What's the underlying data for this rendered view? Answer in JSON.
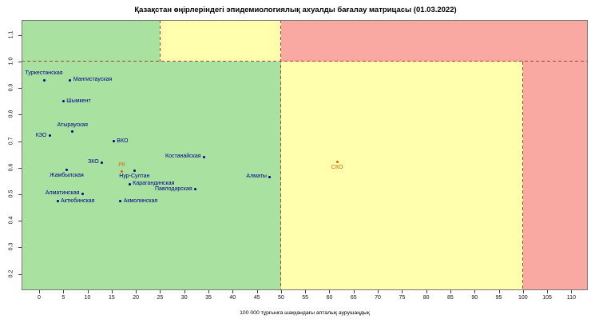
{
  "title": "Қазақстан өңірлеріндегі эпидемиологиялық ахуалды бағалау матрицасы (01.03.2022)",
  "chart_data": {
    "type": "scatter",
    "title": "Қазақстан өңірлеріндегі эпидемиологиялық ахуалды бағалау матрицасы (01.03.2022)",
    "xlabel": "100 000 тұрғынға шаққандағы апталық аурушаңдық",
    "ylabel": "",
    "xlim": [
      -3.63,
      113.4
    ],
    "ylim": [
      0.1386,
      1.1566
    ],
    "grid": false,
    "legend": "none",
    "x_ticks": [
      0,
      5,
      10,
      15,
      20,
      25,
      30,
      35,
      40,
      45,
      50,
      55,
      60,
      65,
      70,
      75,
      80,
      85,
      90,
      95,
      100,
      105,
      110
    ],
    "y_ticks": [
      "0.2",
      "0.3",
      "0.4",
      "0.5",
      "0.6",
      "0.7",
      "0.8",
      "0.9",
      "1.0",
      "1.1"
    ],
    "colors": {
      "zone_green": "#a9e2a0",
      "zone_yellow": "#ffffae",
      "zone_red": "#f9a8a2",
      "threshold_dash": "#a6453a",
      "point_default": "#00008b",
      "point_highlight": "#cc6600"
    },
    "zones": [
      {
        "name": "green-low",
        "x1": -3.63,
        "x2": 50,
        "y1": 0.1386,
        "y2": 1.0,
        "color": "#a9e2a0"
      },
      {
        "name": "yellow-low",
        "x1": 50,
        "x2": 100,
        "y1": 0.1386,
        "y2": 1.0,
        "color": "#ffffae"
      },
      {
        "name": "red-low",
        "x1": 100,
        "x2": 113.4,
        "y1": 0.1386,
        "y2": 1.0,
        "color": "#f9a8a2"
      },
      {
        "name": "green-high",
        "x1": -3.63,
        "x2": 25,
        "y1": 1.0,
        "y2": 1.1566,
        "color": "#a9e2a0"
      },
      {
        "name": "yellow-high",
        "x1": 25,
        "x2": 50,
        "y1": 1.0,
        "y2": 1.1566,
        "color": "#ffffae"
      },
      {
        "name": "red-high",
        "x1": 50,
        "x2": 113.4,
        "y1": 1.0,
        "y2": 1.1566,
        "color": "#f9a8a2"
      }
    ],
    "threshold_lines": [
      {
        "name": "rt-1.0",
        "orient": "h",
        "at": 1.0,
        "from": -3.63,
        "to": 113.4
      },
      {
        "name": "incidence-25-top",
        "orient": "v",
        "at": 25,
        "from": 1.0,
        "to": 1.1566
      },
      {
        "name": "incidence-50",
        "orient": "v",
        "at": 50,
        "from": 0.1386,
        "to": 1.1566
      },
      {
        "name": "incidence-100-low",
        "orient": "v",
        "at": 100,
        "from": 0.1386,
        "to": 1.0
      }
    ],
    "points": [
      {
        "label": "Туркестанская",
        "x": 1.0,
        "y": 0.93,
        "label_pos": "above",
        "color": "#00008b"
      },
      {
        "label": "Мангистауская",
        "x": 6.4,
        "y": 0.93,
        "label_pos": "right",
        "color": "#00008b"
      },
      {
        "label": "Шымкент",
        "x": 5.0,
        "y": 0.85,
        "label_pos": "right",
        "color": "#00008b"
      },
      {
        "label": "Атырауская",
        "x": 6.9,
        "y": 0.735,
        "label_pos": "above",
        "color": "#00008b"
      },
      {
        "label": "КЗО",
        "x": 2.2,
        "y": 0.72,
        "label_pos": "left",
        "color": "#00008b"
      },
      {
        "label": "ВКО",
        "x": 15.4,
        "y": 0.7,
        "label_pos": "right",
        "color": "#00008b"
      },
      {
        "label": "ЗКО",
        "x": 13.0,
        "y": 0.62,
        "label_pos": "left",
        "color": "#00008b"
      },
      {
        "label": "РК",
        "x": 17.1,
        "y": 0.585,
        "label_pos": "above",
        "color": "#cc6600"
      },
      {
        "label": "Нур-Султан",
        "x": 19.7,
        "y": 0.589,
        "label_pos": "below",
        "color": "#00008b"
      },
      {
        "label": "Жамбылская",
        "x": 5.7,
        "y": 0.592,
        "label_pos": "below",
        "color": "#00008b"
      },
      {
        "label": "Карагандинская",
        "x": 18.7,
        "y": 0.539,
        "label_pos": "right",
        "color": "#00008b"
      },
      {
        "label": "Павлодарская",
        "x": 32.3,
        "y": 0.519,
        "label_pos": "left",
        "color": "#00008b"
      },
      {
        "label": "Алматинская",
        "x": 9.0,
        "y": 0.503,
        "label_pos": "left",
        "color": "#00008b"
      },
      {
        "label": "Актюбинская",
        "x": 3.8,
        "y": 0.473,
        "label_pos": "right",
        "color": "#00008b"
      },
      {
        "label": "Акмолинская",
        "x": 16.8,
        "y": 0.474,
        "label_pos": "right",
        "color": "#00008b"
      },
      {
        "label": "Костанайская",
        "x": 34.1,
        "y": 0.641,
        "label_pos": "left",
        "color": "#00008b"
      },
      {
        "label": "Алматы",
        "x": 47.7,
        "y": 0.566,
        "label_pos": "left",
        "color": "#00008b"
      },
      {
        "label": "СКО",
        "x": 61.6,
        "y": 0.623,
        "label_pos": "below",
        "color": "#cc6600"
      }
    ]
  }
}
